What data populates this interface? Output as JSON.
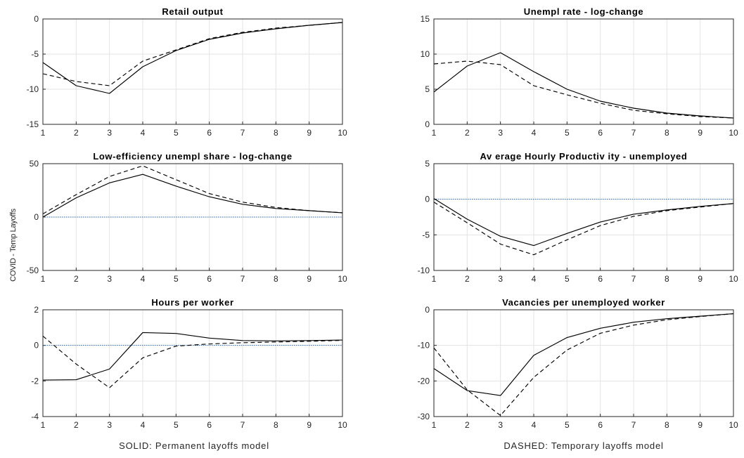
{
  "figure": {
    "ylabel": "COVID - Temp Layoffs",
    "footer_left": "SOLID: Permanent layoffs model",
    "footer_right": "DASHED: Temporary layoffs model"
  },
  "chart_data": [
    {
      "type": "line",
      "title": "Retail output",
      "x": [
        1,
        2,
        3,
        4,
        5,
        6,
        7,
        8,
        9,
        10
      ],
      "xlim": [
        1,
        10
      ],
      "ylim": [
        -15,
        0
      ],
      "yticks": [
        -15,
        -10,
        -5,
        0
      ],
      "grid": true,
      "reference_line": 0,
      "series": [
        {
          "style": "solid",
          "values": [
            -6.2,
            -9.5,
            -10.6,
            -6.8,
            -4.5,
            -2.9,
            -2.0,
            -1.4,
            -0.9,
            -0.5
          ]
        },
        {
          "style": "dashed",
          "values": [
            -7.8,
            -8.9,
            -9.5,
            -6.0,
            -4.4,
            -2.8,
            -1.9,
            -1.3,
            -0.9,
            -0.5
          ]
        }
      ]
    },
    {
      "type": "line",
      "title": "Unempl rate - log-change",
      "x": [
        1,
        2,
        3,
        4,
        5,
        6,
        7,
        8,
        9,
        10
      ],
      "xlim": [
        1,
        10
      ],
      "ylim": [
        0,
        15
      ],
      "yticks": [
        0,
        5,
        10,
        15
      ],
      "grid": true,
      "reference_line": 0,
      "series": [
        {
          "style": "solid",
          "values": [
            4.6,
            8.3,
            10.2,
            7.5,
            5.0,
            3.3,
            2.3,
            1.6,
            1.2,
            0.9
          ]
        },
        {
          "style": "dashed",
          "values": [
            8.6,
            9.0,
            8.5,
            5.5,
            4.2,
            3.0,
            2.0,
            1.5,
            1.1,
            0.9
          ]
        }
      ]
    },
    {
      "type": "line",
      "title": "Low-efficiency unempl share - log-change",
      "x": [
        1,
        2,
        3,
        4,
        5,
        6,
        7,
        8,
        9,
        10
      ],
      "xlim": [
        1,
        10
      ],
      "ylim": [
        -50,
        50
      ],
      "yticks": [
        -50,
        0,
        50
      ],
      "grid": true,
      "reference_line": 0,
      "series": [
        {
          "style": "solid",
          "values": [
            0,
            18,
            32,
            40,
            29,
            19,
            12,
            8,
            6,
            4
          ]
        },
        {
          "style": "dashed",
          "values": [
            3,
            21,
            38,
            48,
            35,
            22,
            14,
            9,
            6,
            4
          ]
        }
      ]
    },
    {
      "type": "line",
      "title": "Av erage Hourly Productiv ity - unemployed",
      "x": [
        1,
        2,
        3,
        4,
        5,
        6,
        7,
        8,
        9,
        10
      ],
      "xlim": [
        1,
        10
      ],
      "ylim": [
        -10,
        5
      ],
      "yticks": [
        -10,
        -5,
        0,
        5
      ],
      "grid": true,
      "reference_line": 0,
      "series": [
        {
          "style": "solid",
          "values": [
            0.1,
            -2.8,
            -5.2,
            -6.5,
            -4.8,
            -3.2,
            -2.1,
            -1.5,
            -1.0,
            -0.6
          ]
        },
        {
          "style": "dashed",
          "values": [
            -0.4,
            -3.3,
            -6.3,
            -7.8,
            -5.7,
            -3.7,
            -2.4,
            -1.6,
            -1.1,
            -0.6
          ]
        }
      ]
    },
    {
      "type": "line",
      "title": "Hours per worker",
      "x": [
        1,
        2,
        3,
        4,
        5,
        6,
        7,
        8,
        9,
        10
      ],
      "xlim": [
        1,
        10
      ],
      "ylim": [
        -4,
        2
      ],
      "yticks": [
        -4,
        -2,
        0,
        2
      ],
      "grid": true,
      "reference_line": 0,
      "series": [
        {
          "style": "solid",
          "values": [
            -1.95,
            -1.93,
            -1.33,
            0.72,
            0.67,
            0.41,
            0.27,
            0.25,
            0.27,
            0.3
          ]
        },
        {
          "style": "dashed",
          "values": [
            0.52,
            -1.05,
            -2.38,
            -0.7,
            -0.04,
            0.08,
            0.15,
            0.19,
            0.23,
            0.28
          ]
        }
      ]
    },
    {
      "type": "line",
      "title": "Vacancies per unemployed worker",
      "x": [
        1,
        2,
        3,
        4,
        5,
        6,
        7,
        8,
        9,
        10
      ],
      "xlim": [
        1,
        10
      ],
      "ylim": [
        -30,
        0
      ],
      "yticks": [
        -30,
        -20,
        -10,
        0
      ],
      "grid": true,
      "reference_line": 0,
      "series": [
        {
          "style": "solid",
          "values": [
            -16.5,
            -22.7,
            -24.1,
            -12.8,
            -7.8,
            -5.2,
            -3.5,
            -2.5,
            -1.8,
            -1.1
          ]
        },
        {
          "style": "dashed",
          "values": [
            -10.7,
            -22.5,
            -29.7,
            -19.0,
            -11.3,
            -6.6,
            -4.3,
            -2.8,
            -1.9,
            -1.1
          ]
        }
      ]
    }
  ]
}
